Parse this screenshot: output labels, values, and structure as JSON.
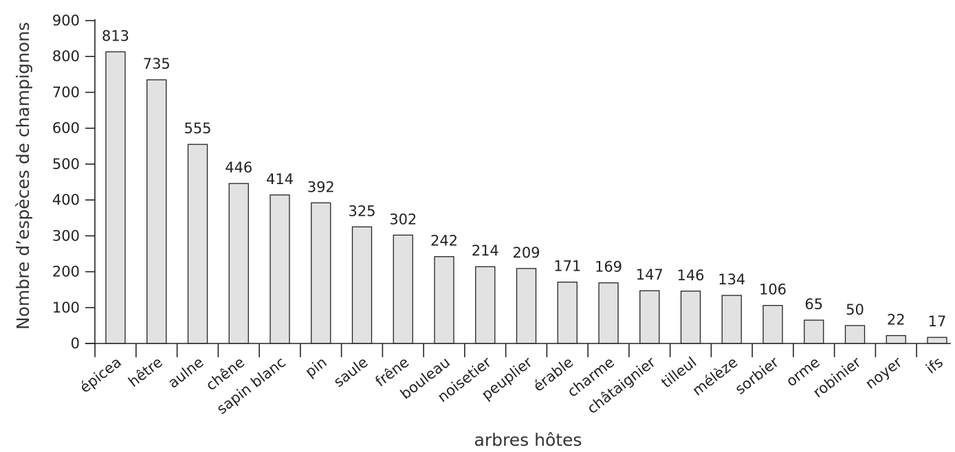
{
  "chart_data": {
    "type": "bar",
    "title": "",
    "xlabel": "arbres hôtes",
    "ylabel": "Nombre d’espèces de champignons",
    "ylim": [
      0,
      900
    ],
    "yticks": [
      0,
      100,
      200,
      300,
      400,
      500,
      600,
      700,
      800,
      900
    ],
    "categories": [
      "épicea",
      "hêtre",
      "aulne",
      "chêne",
      "sapin blanc",
      "pin",
      "saule",
      "frêne",
      "bouleau",
      "noisetier",
      "peuplier",
      "érable",
      "charme",
      "châtaignier",
      "tilleul",
      "mélèze",
      "sorbier",
      "orme",
      "robinier",
      "noyer",
      "ifs"
    ],
    "values": [
      813,
      735,
      555,
      446,
      414,
      392,
      325,
      302,
      242,
      214,
      209,
      171,
      169,
      147,
      146,
      134,
      106,
      65,
      50,
      22,
      17
    ],
    "data_labels": true,
    "grid": false,
    "bar_color": "#e2e2e2",
    "edge_color": "#222222"
  }
}
